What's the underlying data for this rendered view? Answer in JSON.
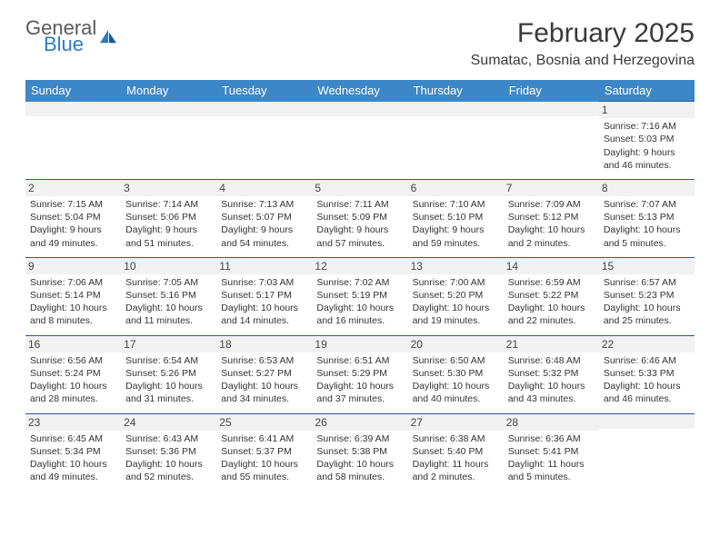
{
  "brand": {
    "general": "General",
    "blue": "Blue"
  },
  "title": "February 2025",
  "location": "Sumatac, Bosnia and Herzegovina",
  "colors": {
    "header_bg": "#3c87c7",
    "header_text": "#ffffff",
    "rule": "#2d5f8f",
    "shade": "#f1f1f1",
    "brand_blue": "#2f7bbf",
    "text_dark": "#3a3a3a"
  },
  "dayNames": [
    "Sunday",
    "Monday",
    "Tuesday",
    "Wednesday",
    "Thursday",
    "Friday",
    "Saturday"
  ],
  "weeks": [
    [
      null,
      null,
      null,
      null,
      null,
      null,
      {
        "n": "1",
        "sr": "Sunrise: 7:16 AM",
        "ss": "Sunset: 5:03 PM",
        "dl1": "Daylight: 9 hours",
        "dl2": "and 46 minutes."
      }
    ],
    [
      {
        "n": "2",
        "sr": "Sunrise: 7:15 AM",
        "ss": "Sunset: 5:04 PM",
        "dl1": "Daylight: 9 hours",
        "dl2": "and 49 minutes."
      },
      {
        "n": "3",
        "sr": "Sunrise: 7:14 AM",
        "ss": "Sunset: 5:06 PM",
        "dl1": "Daylight: 9 hours",
        "dl2": "and 51 minutes."
      },
      {
        "n": "4",
        "sr": "Sunrise: 7:13 AM",
        "ss": "Sunset: 5:07 PM",
        "dl1": "Daylight: 9 hours",
        "dl2": "and 54 minutes."
      },
      {
        "n": "5",
        "sr": "Sunrise: 7:11 AM",
        "ss": "Sunset: 5:09 PM",
        "dl1": "Daylight: 9 hours",
        "dl2": "and 57 minutes."
      },
      {
        "n": "6",
        "sr": "Sunrise: 7:10 AM",
        "ss": "Sunset: 5:10 PM",
        "dl1": "Daylight: 9 hours",
        "dl2": "and 59 minutes."
      },
      {
        "n": "7",
        "sr": "Sunrise: 7:09 AM",
        "ss": "Sunset: 5:12 PM",
        "dl1": "Daylight: 10 hours",
        "dl2": "and 2 minutes."
      },
      {
        "n": "8",
        "sr": "Sunrise: 7:07 AM",
        "ss": "Sunset: 5:13 PM",
        "dl1": "Daylight: 10 hours",
        "dl2": "and 5 minutes."
      }
    ],
    [
      {
        "n": "9",
        "sr": "Sunrise: 7:06 AM",
        "ss": "Sunset: 5:14 PM",
        "dl1": "Daylight: 10 hours",
        "dl2": "and 8 minutes."
      },
      {
        "n": "10",
        "sr": "Sunrise: 7:05 AM",
        "ss": "Sunset: 5:16 PM",
        "dl1": "Daylight: 10 hours",
        "dl2": "and 11 minutes."
      },
      {
        "n": "11",
        "sr": "Sunrise: 7:03 AM",
        "ss": "Sunset: 5:17 PM",
        "dl1": "Daylight: 10 hours",
        "dl2": "and 14 minutes."
      },
      {
        "n": "12",
        "sr": "Sunrise: 7:02 AM",
        "ss": "Sunset: 5:19 PM",
        "dl1": "Daylight: 10 hours",
        "dl2": "and 16 minutes."
      },
      {
        "n": "13",
        "sr": "Sunrise: 7:00 AM",
        "ss": "Sunset: 5:20 PM",
        "dl1": "Daylight: 10 hours",
        "dl2": "and 19 minutes."
      },
      {
        "n": "14",
        "sr": "Sunrise: 6:59 AM",
        "ss": "Sunset: 5:22 PM",
        "dl1": "Daylight: 10 hours",
        "dl2": "and 22 minutes."
      },
      {
        "n": "15",
        "sr": "Sunrise: 6:57 AM",
        "ss": "Sunset: 5:23 PM",
        "dl1": "Daylight: 10 hours",
        "dl2": "and 25 minutes."
      }
    ],
    [
      {
        "n": "16",
        "sr": "Sunrise: 6:56 AM",
        "ss": "Sunset: 5:24 PM",
        "dl1": "Daylight: 10 hours",
        "dl2": "and 28 minutes."
      },
      {
        "n": "17",
        "sr": "Sunrise: 6:54 AM",
        "ss": "Sunset: 5:26 PM",
        "dl1": "Daylight: 10 hours",
        "dl2": "and 31 minutes."
      },
      {
        "n": "18",
        "sr": "Sunrise: 6:53 AM",
        "ss": "Sunset: 5:27 PM",
        "dl1": "Daylight: 10 hours",
        "dl2": "and 34 minutes."
      },
      {
        "n": "19",
        "sr": "Sunrise: 6:51 AM",
        "ss": "Sunset: 5:29 PM",
        "dl1": "Daylight: 10 hours",
        "dl2": "and 37 minutes."
      },
      {
        "n": "20",
        "sr": "Sunrise: 6:50 AM",
        "ss": "Sunset: 5:30 PM",
        "dl1": "Daylight: 10 hours",
        "dl2": "and 40 minutes."
      },
      {
        "n": "21",
        "sr": "Sunrise: 6:48 AM",
        "ss": "Sunset: 5:32 PM",
        "dl1": "Daylight: 10 hours",
        "dl2": "and 43 minutes."
      },
      {
        "n": "22",
        "sr": "Sunrise: 6:46 AM",
        "ss": "Sunset: 5:33 PM",
        "dl1": "Daylight: 10 hours",
        "dl2": "and 46 minutes."
      }
    ],
    [
      {
        "n": "23",
        "sr": "Sunrise: 6:45 AM",
        "ss": "Sunset: 5:34 PM",
        "dl1": "Daylight: 10 hours",
        "dl2": "and 49 minutes."
      },
      {
        "n": "24",
        "sr": "Sunrise: 6:43 AM",
        "ss": "Sunset: 5:36 PM",
        "dl1": "Daylight: 10 hours",
        "dl2": "and 52 minutes."
      },
      {
        "n": "25",
        "sr": "Sunrise: 6:41 AM",
        "ss": "Sunset: 5:37 PM",
        "dl1": "Daylight: 10 hours",
        "dl2": "and 55 minutes."
      },
      {
        "n": "26",
        "sr": "Sunrise: 6:39 AM",
        "ss": "Sunset: 5:38 PM",
        "dl1": "Daylight: 10 hours",
        "dl2": "and 58 minutes."
      },
      {
        "n": "27",
        "sr": "Sunrise: 6:38 AM",
        "ss": "Sunset: 5:40 PM",
        "dl1": "Daylight: 11 hours",
        "dl2": "and 2 minutes."
      },
      {
        "n": "28",
        "sr": "Sunrise: 6:36 AM",
        "ss": "Sunset: 5:41 PM",
        "dl1": "Daylight: 11 hours",
        "dl2": "and 5 minutes."
      },
      null
    ]
  ]
}
